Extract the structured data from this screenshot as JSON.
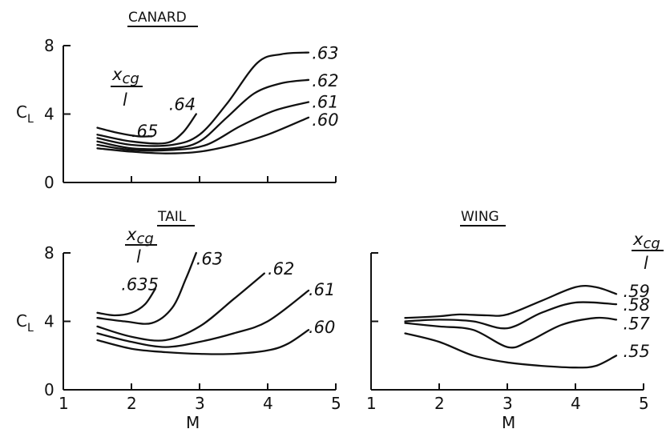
{
  "chart_data": [
    {
      "type": "line",
      "title": "CANARD",
      "xlabel": "",
      "ylabel": "C_L",
      "xlim": [
        1,
        5
      ],
      "ylim": [
        0,
        8
      ],
      "x_ticks": [
        "1",
        "2",
        "3",
        "4",
        "5"
      ],
      "x_tick_labels_shown": false,
      "y_ticks": [
        "0",
        "4",
        "8"
      ],
      "legend_title": "x_cg / l",
      "grid": false,
      "series": [
        {
          "name": ".65",
          "points": [
            [
              1.5,
              3.2
            ],
            [
              1.8,
              2.9
            ],
            [
              2.1,
              2.7
            ],
            [
              2.3,
              2.7
            ]
          ]
        },
        {
          "name": ".64",
          "points": [
            [
              1.5,
              2.8
            ],
            [
              2.0,
              2.4
            ],
            [
              2.5,
              2.3
            ],
            [
              2.75,
              2.9
            ],
            [
              2.95,
              4.0
            ]
          ]
        },
        {
          "name": ".63",
          "points": [
            [
              1.5,
              2.6
            ],
            [
              2.0,
              2.2
            ],
            [
              2.6,
              2.2
            ],
            [
              3.0,
              2.8
            ],
            [
              3.4,
              4.6
            ],
            [
              3.85,
              7.0
            ],
            [
              4.2,
              7.5
            ],
            [
              4.6,
              7.6
            ]
          ]
        },
        {
          "name": ".62",
          "points": [
            [
              1.5,
              2.4
            ],
            [
              2.0,
              2.0
            ],
            [
              2.6,
              2.0
            ],
            [
              3.0,
              2.4
            ],
            [
              3.4,
              3.8
            ],
            [
              3.8,
              5.2
            ],
            [
              4.2,
              5.8
            ],
            [
              4.6,
              6.0
            ]
          ]
        },
        {
          "name": ".61",
          "points": [
            [
              1.5,
              2.2
            ],
            [
              2.0,
              1.9
            ],
            [
              2.6,
              1.9
            ],
            [
              3.1,
              2.2
            ],
            [
              3.6,
              3.3
            ],
            [
              4.1,
              4.2
            ],
            [
              4.6,
              4.7
            ]
          ]
        },
        {
          "name": ".60",
          "points": [
            [
              1.5,
              2.0
            ],
            [
              2.0,
              1.8
            ],
            [
              2.5,
              1.7
            ],
            [
              3.0,
              1.8
            ],
            [
              3.5,
              2.2
            ],
            [
              4.0,
              2.8
            ],
            [
              4.6,
              3.8
            ]
          ]
        }
      ]
    },
    {
      "type": "line",
      "title": "TAIL",
      "xlabel": "M",
      "ylabel": "C_L",
      "xlim": [
        1,
        5
      ],
      "ylim": [
        0,
        8
      ],
      "x_ticks": [
        "1",
        "2",
        "3",
        "4",
        "5"
      ],
      "y_ticks": [
        "0",
        "4",
        "8"
      ],
      "legend_title": "x_cg / l",
      "grid": false,
      "series": [
        {
          "name": ".635",
          "points": [
            [
              1.5,
              4.5
            ],
            [
              1.75,
              4.35
            ],
            [
              2.0,
              4.5
            ],
            [
              2.2,
              5.0
            ],
            [
              2.35,
              5.9
            ]
          ]
        },
        {
          "name": ".63",
          "points": [
            [
              1.5,
              4.2
            ],
            [
              1.9,
              4.0
            ],
            [
              2.3,
              3.9
            ],
            [
              2.6,
              4.8
            ],
            [
              2.8,
              6.5
            ],
            [
              2.95,
              8.0
            ]
          ]
        },
        {
          "name": ".62",
          "points": [
            [
              1.5,
              3.7
            ],
            [
              2.0,
              3.1
            ],
            [
              2.5,
              2.9
            ],
            [
              3.0,
              3.7
            ],
            [
              3.5,
              5.3
            ],
            [
              3.95,
              6.8
            ]
          ]
        },
        {
          "name": ".61",
          "points": [
            [
              1.5,
              3.3
            ],
            [
              2.0,
              2.8
            ],
            [
              2.5,
              2.5
            ],
            [
              3.0,
              2.8
            ],
            [
              3.5,
              3.3
            ],
            [
              4.0,
              4.0
            ],
            [
              4.6,
              5.8
            ]
          ]
        },
        {
          "name": ".60",
          "points": [
            [
              1.5,
              2.9
            ],
            [
              2.0,
              2.4
            ],
            [
              2.5,
              2.2
            ],
            [
              3.0,
              2.1
            ],
            [
              3.5,
              2.1
            ],
            [
              4.0,
              2.3
            ],
            [
              4.3,
              2.7
            ],
            [
              4.6,
              3.5
            ]
          ]
        }
      ]
    },
    {
      "type": "line",
      "title": "WING",
      "xlabel": "M",
      "ylabel": "",
      "xlim": [
        1,
        5
      ],
      "ylim": [
        0,
        8
      ],
      "x_ticks": [
        "1",
        "2",
        "3",
        "4",
        "5"
      ],
      "y_ticks_shown": false,
      "legend_title": "x_cg / l",
      "grid": false,
      "series": [
        {
          "name": ".59",
          "points": [
            [
              1.5,
              4.2
            ],
            [
              2.0,
              4.3
            ],
            [
              2.3,
              4.4
            ],
            [
              2.7,
              4.35
            ],
            [
              3.0,
              4.4
            ],
            [
              3.5,
              5.2
            ],
            [
              4.0,
              6.0
            ],
            [
              4.3,
              6.0
            ],
            [
              4.6,
              5.6
            ]
          ]
        },
        {
          "name": ".58",
          "points": [
            [
              1.5,
              4.0
            ],
            [
              2.0,
              4.1
            ],
            [
              2.5,
              4.0
            ],
            [
              3.0,
              3.6
            ],
            [
              3.5,
              4.5
            ],
            [
              4.0,
              5.1
            ],
            [
              4.6,
              5.0
            ]
          ]
        },
        {
          "name": ".57",
          "points": [
            [
              1.5,
              3.9
            ],
            [
              2.0,
              3.7
            ],
            [
              2.5,
              3.5
            ],
            [
              3.0,
              2.5
            ],
            [
              3.3,
              2.8
            ],
            [
              3.8,
              3.8
            ],
            [
              4.3,
              4.2
            ],
            [
              4.6,
              4.1
            ]
          ]
        },
        {
          "name": ".55",
          "points": [
            [
              1.5,
              3.3
            ],
            [
              2.0,
              2.8
            ],
            [
              2.5,
              2.0
            ],
            [
              3.0,
              1.6
            ],
            [
              3.5,
              1.4
            ],
            [
              4.0,
              1.3
            ],
            [
              4.3,
              1.4
            ],
            [
              4.6,
              2.0
            ]
          ]
        }
      ]
    }
  ],
  "labels": {
    "canard_title": "CANARD",
    "tail_title": "TAIL",
    "wing_title": "WING",
    "cl_main": "C",
    "cl_sub": "L",
    "m_label": "M",
    "xcg_num": "x",
    "xcg_sub": "cg",
    "xcg_den": "l"
  },
  "canard_x_label_positions": {
    ".65": [
      2.0,
      3.05
    ],
    ".64": [
      2.55,
      4.6
    ],
    ".63": [
      4.65,
      7.6
    ],
    ".62": [
      4.65,
      6.0
    ],
    ".61": [
      4.65,
      4.75
    ],
    ".60": [
      4.65,
      3.7
    ]
  },
  "tail_x_label_positions": {
    ".635": [
      1.85,
      6.2
    ],
    ".63": [
      2.95,
      7.7
    ],
    ".62": [
      4.0,
      7.1
    ],
    ".61": [
      4.6,
      5.9
    ],
    ".60": [
      4.6,
      3.7
    ]
  },
  "wing_x_label_positions": {
    ".59": [
      4.7,
      5.8
    ],
    ".58": [
      4.7,
      5.0
    ],
    ".57": [
      4.7,
      3.9
    ],
    ".55": [
      4.7,
      2.3
    ]
  }
}
